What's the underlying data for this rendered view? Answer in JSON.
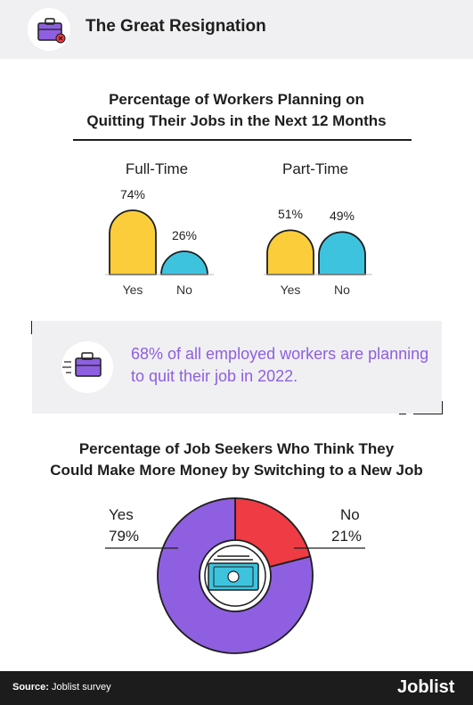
{
  "header": {
    "title": "The Great Resignation",
    "icon": "briefcase-x-icon"
  },
  "section1": {
    "title_line1": "Percentage of Workers Planning on",
    "title_line2": "Quitting Their Jobs in the Next 12 Months"
  },
  "callout": {
    "icon": "briefcase-icon",
    "text": "68% of all employed workers are planning to quit their job in 2022."
  },
  "section2": {
    "title_line1": "Percentage of Job Seekers Who Think They",
    "title_line2": "Could Make More Money by Switching to a New Job"
  },
  "footer": {
    "source_label": "Source:",
    "source_text": "Joblist survey",
    "brand": "Joblist"
  },
  "colors": {
    "yellow": "#fbcd3a",
    "blue": "#3ec3df",
    "purple": "#8e5fe0",
    "red": "#ef3b44",
    "outline": "#1e1e1e"
  },
  "chart_data": [
    {
      "type": "bar",
      "title": "Full-Time",
      "categories": [
        "Yes",
        "No"
      ],
      "values": [
        74,
        26
      ],
      "value_labels": [
        "74%",
        "26%"
      ],
      "unit": "%",
      "colors": [
        "#fbcd3a",
        "#3ec3df"
      ]
    },
    {
      "type": "bar",
      "title": "Part-Time",
      "categories": [
        "Yes",
        "No"
      ],
      "values": [
        51,
        49
      ],
      "value_labels": [
        "51%",
        "49%"
      ],
      "unit": "%",
      "colors": [
        "#fbcd3a",
        "#3ec3df"
      ]
    },
    {
      "type": "pie",
      "subtype": "donut",
      "categories": [
        "Yes",
        "No"
      ],
      "values": [
        79,
        21
      ],
      "value_labels": [
        "79%",
        "21%"
      ],
      "colors": [
        "#8e5fe0",
        "#ef3b44"
      ],
      "center_icon": "money-bill-icon"
    }
  ]
}
